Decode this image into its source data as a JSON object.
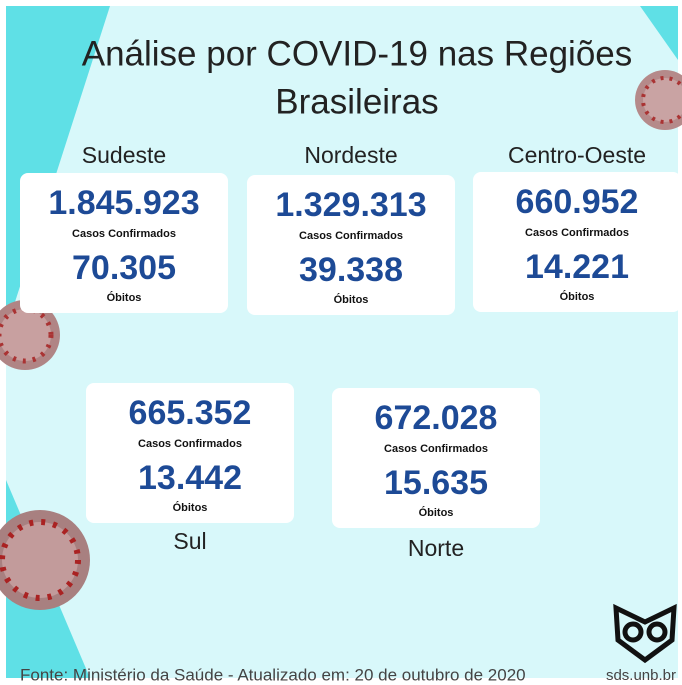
{
  "header": {
    "title_lines": [
      "Análise por COVID-19 nas Regiões",
      "Brasileiras"
    ]
  },
  "regions": [
    {
      "name": "Sudeste",
      "cases": "1.845.923",
      "cases_label": "Casos Confirmados",
      "deaths": "70.305",
      "deaths_label": "Óbitos"
    },
    {
      "name": "Nordeste",
      "cases": "1.329.313",
      "cases_label": "Casos Confirmados",
      "deaths": "39.338",
      "deaths_label": "Óbitos"
    },
    {
      "name": "Centro-Oeste",
      "cases": "660.952",
      "cases_label": "Casos Confirmados",
      "deaths": "14.221",
      "deaths_label": "Óbitos"
    },
    {
      "name": "Sul",
      "cases": "665.352",
      "cases_label": "Casos Confirmados",
      "deaths": "13.442",
      "deaths_label": "Óbitos"
    },
    {
      "name": "Norte",
      "cases": "672.028",
      "cases_label": "Casos Confirmados",
      "deaths": "15.635",
      "deaths_label": "Óbitos"
    }
  ],
  "footer": {
    "source": "Fonte: Ministério da Saúde - Atualizado em: 20 de outubro de 2020",
    "brand": "sds.unb.br"
  }
}
